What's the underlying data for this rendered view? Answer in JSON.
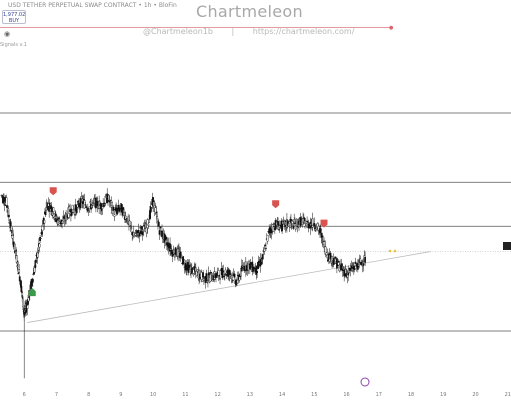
{
  "header": {
    "symbol_line": "USD TETHER PERPETUAL SWAP CONTRACT • 1h • BloFin",
    "price": "1,977.02",
    "buy_label": "BUY",
    "signals_label": "Signals v.1",
    "brand": "Chartmeleon",
    "handle": "@Chartmeleon1b",
    "separator": "|",
    "url": "https://chartmeleon.com/"
  },
  "chart_data": {
    "type": "candlestick",
    "x_tick_labels": [
      "6",
      "7",
      "8",
      "9",
      "10",
      "11",
      "12",
      "13",
      "14",
      "15",
      "16",
      "17",
      "18",
      "19",
      "20",
      "21"
    ],
    "x_tick_values": [
      6,
      7,
      8,
      9,
      10,
      11,
      12,
      13,
      14,
      15,
      16,
      17,
      18,
      19,
      20,
      21
    ],
    "x_range": [
      5.25,
      21.1
    ],
    "y_range": [
      0,
      100
    ],
    "series": [
      {
        "x": [
          5.3,
          5.45,
          5.6,
          5.75,
          5.9,
          6.0,
          6.1,
          6.25,
          6.4,
          6.55,
          6.7,
          6.85,
          7.0,
          7.2,
          7.4,
          7.6,
          7.8,
          8.0,
          8.2,
          8.4,
          8.6,
          8.8,
          9.0,
          9.2,
          9.4,
          9.6,
          9.8,
          10.0,
          10.2,
          10.4,
          10.6,
          10.8,
          11.0,
          11.2,
          11.4,
          11.6,
          11.8,
          12.0,
          12.2,
          12.4,
          12.6,
          12.8,
          13.0,
          13.2,
          13.4,
          13.6,
          13.8,
          14.0,
          14.2,
          14.4,
          14.6,
          14.8,
          15.0,
          15.2,
          15.4,
          15.6,
          15.8,
          16.0,
          16.2,
          16.4,
          16.6
        ],
        "values": [
          80,
          76,
          60,
          45,
          28,
          10,
          16,
          30,
          44,
          58,
          75,
          73,
          66,
          64,
          71,
          72,
          77,
          73,
          76,
          74,
          79,
          70,
          73,
          66,
          56,
          59,
          61,
          77,
          60,
          53,
          47,
          46,
          39,
          36,
          34,
          31,
          32,
          33,
          35,
          34,
          29,
          38,
          39,
          36,
          43,
          59,
          63,
          62,
          64,
          63,
          65,
          63,
          64,
          58,
          45,
          42,
          38,
          34,
          37,
          40,
          43
        ]
      }
    ],
    "horizontal_levels": [
      88,
      62,
      47,
      0
    ],
    "trendline": {
      "x": [
        6.1,
        18.6
      ],
      "y": [
        5,
        47
      ]
    },
    "sell_signals_x": [
      6.9,
      13.8,
      15.3
    ],
    "buy_signals_x": [
      6.25
    ]
  }
}
